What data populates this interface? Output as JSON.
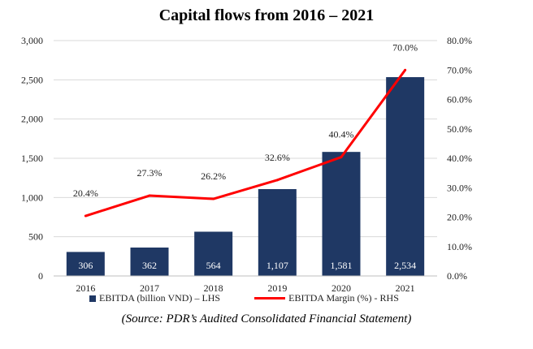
{
  "chart_data": {
    "type": "bar",
    "title": "Capital flows from 2016 – 2021",
    "categories": [
      "2016",
      "2017",
      "2018",
      "2019",
      "2020",
      "2021"
    ],
    "series": [
      {
        "name": "EBITDA (billion VND) – LHS",
        "type": "bar",
        "axis": "left",
        "values": [
          306,
          362,
          564,
          1107,
          1581,
          2534
        ],
        "labels": [
          "306",
          "362",
          "564",
          "1,107",
          "1,581",
          "2,534"
        ],
        "color": "#1f3864"
      },
      {
        "name": "EBITDA Margin (%) - RHS",
        "type": "line",
        "axis": "right",
        "values": [
          20.4,
          27.3,
          26.2,
          32.6,
          40.4,
          70.0
        ],
        "labels": [
          "20.4%",
          "27.3%",
          "26.2%",
          "32.6%",
          "40.4%",
          "70.0%"
        ],
        "color": "#ff0000"
      }
    ],
    "ylim_left": [
      0,
      3000
    ],
    "yticks_left": [
      "0",
      "500",
      "1,000",
      "1,500",
      "2,000",
      "2,500",
      "3,000"
    ],
    "ylim_right": [
      0,
      80
    ],
    "yticks_right": [
      "0.0%",
      "10.0%",
      "20.0%",
      "30.0%",
      "40.0%",
      "50.0%",
      "60.0%",
      "70.0%",
      "80.0%"
    ],
    "grid": true,
    "legend": "bottom"
  },
  "source": "(Source: PDR’s Audited Consolidated Financial Statement)"
}
